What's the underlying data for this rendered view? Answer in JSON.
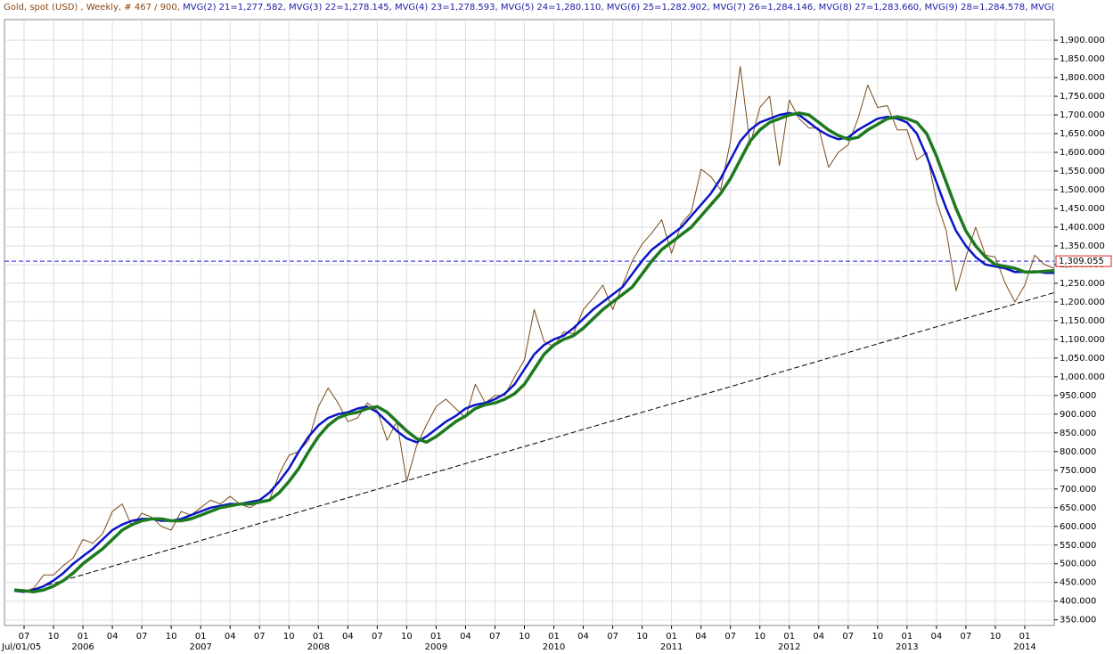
{
  "chart_data": {
    "type": "line",
    "title": "Gold, spot (USD) , Weekly, # 467 / 900,",
    "indicator_label": "MVG(2) 21=1,277.582, MVG(3) 22=1,278.145, MVG(4) 23=1,278.593, MVG(5) 24=1,280.110, MVG(6) 25=1,282.902, MVG(7) 26=1,284.146, MVG(8) 27=1,283.660, MVG(9) 28=1,284.578, MVG(",
    "start_label": "Jul/01/05",
    "x": [
      "2005-06",
      "2005-07",
      "2005-08",
      "2005-09",
      "2005-10",
      "2005-11",
      "2005-12",
      "2006-01",
      "2006-02",
      "2006-03",
      "2006-04",
      "2006-05",
      "2006-06",
      "2006-07",
      "2006-08",
      "2006-09",
      "2006-10",
      "2006-11",
      "2006-12",
      "2007-01",
      "2007-02",
      "2007-03",
      "2007-04",
      "2007-05",
      "2007-06",
      "2007-07",
      "2007-08",
      "2007-09",
      "2007-10",
      "2007-11",
      "2007-12",
      "2008-01",
      "2008-02",
      "2008-03",
      "2008-04",
      "2008-05",
      "2008-06",
      "2008-07",
      "2008-08",
      "2008-09",
      "2008-10",
      "2008-11",
      "2008-12",
      "2009-01",
      "2009-02",
      "2009-03",
      "2009-04",
      "2009-05",
      "2009-06",
      "2009-07",
      "2009-08",
      "2009-09",
      "2009-10",
      "2009-11",
      "2009-12",
      "2010-01",
      "2010-02",
      "2010-03",
      "2010-04",
      "2010-05",
      "2010-06",
      "2010-07",
      "2010-08",
      "2010-09",
      "2010-10",
      "2010-11",
      "2010-12",
      "2011-01",
      "2011-02",
      "2011-03",
      "2011-04",
      "2011-05",
      "2011-06",
      "2011-07",
      "2011-08",
      "2011-09",
      "2011-10",
      "2011-11",
      "2011-12",
      "2012-01",
      "2012-02",
      "2012-03",
      "2012-04",
      "2012-05",
      "2012-06",
      "2012-07",
      "2012-08",
      "2012-09",
      "2012-10",
      "2012-11",
      "2012-12",
      "2013-01",
      "2013-02",
      "2013-03",
      "2013-04",
      "2013-05",
      "2013-06",
      "2013-07",
      "2013-08",
      "2013-09",
      "2013-10",
      "2013-11",
      "2013-12",
      "2014-01",
      "2014-02",
      "2014-03",
      "2014-04"
    ],
    "series": [
      {
        "color": "#7b4a1c",
        "width": 1,
        "values": [
          430,
          425,
          435,
          470,
          470,
          495,
          515,
          565,
          555,
          580,
          640,
          660,
          600,
          635,
          625,
          600,
          590,
          640,
          630,
          650,
          670,
          660,
          680,
          660,
          650,
          665,
          670,
          740,
          790,
          800,
          830,
          920,
          970,
          930,
          880,
          890,
          930,
          910,
          830,
          880,
          720,
          815,
          870,
          920,
          940,
          915,
          890,
          980,
          930,
          950,
          950,
          1000,
          1045,
          1180,
          1095,
          1080,
          1120,
          1115,
          1180,
          1210,
          1245,
          1180,
          1245,
          1310,
          1355,
          1385,
          1420,
          1330,
          1410,
          1440,
          1555,
          1535,
          1500,
          1630,
          1830,
          1620,
          1720,
          1750,
          1565,
          1740,
          1690,
          1665,
          1665,
          1560,
          1600,
          1620,
          1690,
          1780,
          1720,
          1725,
          1660,
          1660,
          1580,
          1600,
          1470,
          1390,
          1230,
          1320,
          1400,
          1325,
          1320,
          1250,
          1200,
          1245,
          1325,
          1300,
          1290
        ]
      },
      {
        "color": "#0a14c8",
        "width": 2.5,
        "values": [
          428,
          425,
          430,
          440,
          455,
          475,
          500,
          520,
          540,
          565,
          590,
          605,
          615,
          620,
          620,
          615,
          615,
          620,
          630,
          640,
          650,
          655,
          660,
          660,
          665,
          670,
          690,
          720,
          755,
          800,
          840,
          870,
          890,
          900,
          905,
          915,
          920,
          905,
          880,
          855,
          835,
          825,
          840,
          860,
          880,
          895,
          915,
          925,
          930,
          940,
          955,
          980,
          1020,
          1060,
          1085,
          1100,
          1110,
          1130,
          1155,
          1180,
          1200,
          1220,
          1240,
          1275,
          1310,
          1340,
          1360,
          1380,
          1400,
          1430,
          1460,
          1490,
          1530,
          1580,
          1630,
          1660,
          1680,
          1690,
          1700,
          1705,
          1700,
          1680,
          1660,
          1645,
          1635,
          1640,
          1660,
          1675,
          1690,
          1695,
          1690,
          1680,
          1650,
          1590,
          1520,
          1450,
          1390,
          1350,
          1320,
          1300,
          1295,
          1290,
          1280,
          1280,
          1282,
          1278,
          1278
        ]
      },
      {
        "color": "#1e7a1e",
        "width": 3.5,
        "values": [
          430,
          428,
          425,
          430,
          440,
          455,
          475,
          500,
          520,
          540,
          565,
          590,
          605,
          615,
          620,
          620,
          615,
          615,
          620,
          630,
          640,
          650,
          655,
          660,
          660,
          665,
          670,
          690,
          720,
          755,
          800,
          840,
          870,
          890,
          900,
          905,
          915,
          920,
          905,
          880,
          855,
          835,
          825,
          840,
          860,
          880,
          895,
          915,
          925,
          930,
          940,
          955,
          980,
          1020,
          1060,
          1085,
          1100,
          1110,
          1130,
          1155,
          1180,
          1200,
          1220,
          1240,
          1275,
          1310,
          1340,
          1360,
          1380,
          1400,
          1430,
          1460,
          1490,
          1530,
          1580,
          1630,
          1660,
          1680,
          1690,
          1700,
          1705,
          1700,
          1680,
          1660,
          1645,
          1635,
          1640,
          1660,
          1675,
          1690,
          1695,
          1690,
          1680,
          1650,
          1590,
          1520,
          1450,
          1390,
          1350,
          1320,
          1300,
          1295,
          1290,
          1280,
          1280,
          1282,
          1284
        ]
      }
    ],
    "reference_value": 1309.055,
    "reference_label": "1,309.055",
    "trendline": {
      "x": [
        "2005-07",
        "2014-04"
      ],
      "values": [
        425,
        1225
      ]
    },
    "xlim": [
      "2005-05",
      "2014-04"
    ],
    "xticks": [
      {
        "value": "2005-07",
        "label": "07"
      },
      {
        "value": "2005-10",
        "label": "10"
      },
      {
        "value": "2006-01",
        "label": "01"
      },
      {
        "value": "2006-04",
        "label": "04"
      },
      {
        "value": "2006-07",
        "label": "07"
      },
      {
        "value": "2006-10",
        "label": "10"
      },
      {
        "value": "2007-01",
        "label": "01"
      },
      {
        "value": "2007-04",
        "label": "04"
      },
      {
        "value": "2007-07",
        "label": "07"
      },
      {
        "value": "2007-10",
        "label": "10"
      },
      {
        "value": "2008-01",
        "label": "01"
      },
      {
        "value": "2008-04",
        "label": "04"
      },
      {
        "value": "2008-07",
        "label": "07"
      },
      {
        "value": "2008-10",
        "label": "10"
      },
      {
        "value": "2009-01",
        "label": "01"
      },
      {
        "value": "2009-04",
        "label": "04"
      },
      {
        "value": "2009-07",
        "label": "07"
      },
      {
        "value": "2009-10",
        "label": "10"
      },
      {
        "value": "2010-01",
        "label": "01"
      },
      {
        "value": "2010-04",
        "label": "04"
      },
      {
        "value": "2010-07",
        "label": "07"
      },
      {
        "value": "2010-10",
        "label": "10"
      },
      {
        "value": "2011-01",
        "label": "01"
      },
      {
        "value": "2011-04",
        "label": "04"
      },
      {
        "value": "2011-07",
        "label": "07"
      },
      {
        "value": "2011-10",
        "label": "10"
      },
      {
        "value": "2012-01",
        "label": "01"
      },
      {
        "value": "2012-04",
        "label": "04"
      },
      {
        "value": "2012-07",
        "label": "07"
      },
      {
        "value": "2012-10",
        "label": "10"
      },
      {
        "value": "2013-01",
        "label": "01"
      },
      {
        "value": "2013-04",
        "label": "04"
      },
      {
        "value": "2013-07",
        "label": "07"
      },
      {
        "value": "2013-10",
        "label": "10"
      },
      {
        "value": "2014-01",
        "label": "01"
      }
    ],
    "year_labels": [
      {
        "value": "2006-01",
        "label": "2006"
      },
      {
        "value": "2007-01",
        "label": "2007"
      },
      {
        "value": "2008-01",
        "label": "2008"
      },
      {
        "value": "2009-01",
        "label": "2009"
      },
      {
        "value": "2010-01",
        "label": "2010"
      },
      {
        "value": "2011-01",
        "label": "2011"
      },
      {
        "value": "2012-01",
        "label": "2012"
      },
      {
        "value": "2013-01",
        "label": "2013"
      },
      {
        "value": "2014-01",
        "label": "2014"
      }
    ],
    "ylim": [
      335,
      1955
    ],
    "yticks": [
      {
        "value": 350,
        "label": "350.000"
      },
      {
        "value": 400,
        "label": "400.000"
      },
      {
        "value": 450,
        "label": "450.000"
      },
      {
        "value": 500,
        "label": "500.000"
      },
      {
        "value": 550,
        "label": "550.000"
      },
      {
        "value": 600,
        "label": "600.000"
      },
      {
        "value": 650,
        "label": "650.000"
      },
      {
        "value": 700,
        "label": "700.000"
      },
      {
        "value": 750,
        "label": "750.000"
      },
      {
        "value": 800,
        "label": "800.000"
      },
      {
        "value": 850,
        "label": "850.000"
      },
      {
        "value": 900,
        "label": "900.000"
      },
      {
        "value": 950,
        "label": "950.000"
      },
      {
        "value": 1000,
        "label": "1,000.000"
      },
      {
        "value": 1050,
        "label": "1,050.000"
      },
      {
        "value": 1100,
        "label": "1,100.000"
      },
      {
        "value": 1150,
        "label": "1,150.000"
      },
      {
        "value": 1200,
        "label": "1,200.000"
      },
      {
        "value": 1250,
        "label": "1,250.000"
      },
      {
        "value": 1300,
        "label": "1,300.000"
      },
      {
        "value": 1350,
        "label": "1,350.000"
      },
      {
        "value": 1400,
        "label": "1,400.000"
      },
      {
        "value": 1450,
        "label": "1,450.000"
      },
      {
        "value": 1500,
        "label": "1,500.000"
      },
      {
        "value": 1550,
        "label": "1,550.000"
      },
      {
        "value": 1600,
        "label": "1,600.000"
      },
      {
        "value": 1650,
        "label": "1,650.000"
      },
      {
        "value": 1700,
        "label": "1,700.000"
      },
      {
        "value": 1750,
        "label": "1,750.000"
      },
      {
        "value": 1800,
        "label": "1,800.000"
      },
      {
        "value": 1850,
        "label": "1,850.000"
      },
      {
        "value": 1900,
        "label": "1,900.000"
      }
    ],
    "grid": true
  }
}
